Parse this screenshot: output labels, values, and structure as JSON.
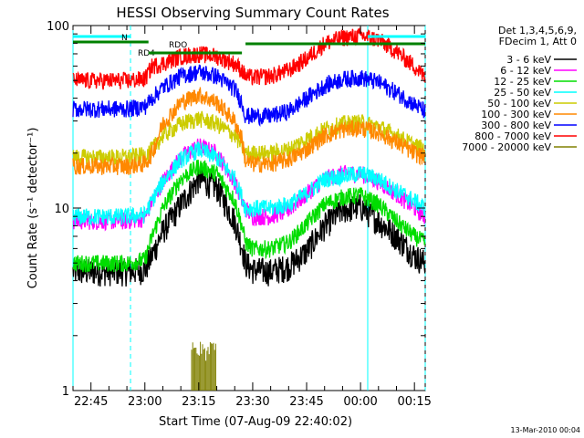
{
  "chart_data": {
    "type": "line",
    "title": "HESSI Observing Summary Count Rates",
    "xlabel": "Start Time (07-Aug-09 22:40:02)",
    "ylabel": "Count Rate (s⁻¹ detector⁻¹)",
    "yscale": "log",
    "ylim": [
      1,
      100
    ],
    "xlim": [
      "22:40",
      "00:18"
    ],
    "x_ticks": [
      "22:45",
      "23:00",
      "23:15",
      "23:30",
      "23:45",
      "00:00",
      "00:15"
    ],
    "y_ticks": [
      "1",
      "10",
      "100"
    ],
    "timestamp": "13-Mar-2010 00:04",
    "legend": {
      "header": [
        "Det 1,3,4,5,6,9,",
        "FDecim 1, Att 0"
      ],
      "placement": "right"
    },
    "annotations": {
      "night": {
        "label": "N",
        "segments": [
          [
            "22:40",
            "22:56"
          ],
          [
            "00:02",
            "00:18"
          ]
        ]
      },
      "rd4": {
        "label": "RD4",
        "segments": [
          [
            "22:40",
            "23:01"
          ]
        ]
      },
      "rdo": {
        "label": "RDO",
        "segments": [
          [
            "23:01",
            "23:27"
          ],
          [
            "23:28",
            "00:18"
          ]
        ]
      },
      "vertical_lines": {
        "solid": [
          "22:40",
          "00:02"
        ],
        "dashed": [
          "22:56",
          "00:18"
        ]
      }
    },
    "x_times": [
      "22:40",
      "22:45",
      "22:50",
      "22:55",
      "23:00",
      "23:02",
      "23:05",
      "23:10",
      "23:15",
      "23:20",
      "23:25",
      "23:27",
      "23:28",
      "23:30",
      "23:35",
      "23:40",
      "23:45",
      "23:50",
      "23:55",
      "00:00",
      "00:05",
      "00:10",
      "00:15",
      "00:18"
    ],
    "series": [
      {
        "name": "3 - 6 keV",
        "color": "#000000",
        "values": [
          4.5,
          4.5,
          4.5,
          4.5,
          4.6,
          5.5,
          7.5,
          10.5,
          14.5,
          13,
          8.5,
          6.2,
          5,
          4.6,
          4.5,
          4.8,
          5.8,
          8,
          9.8,
          10.2,
          8.5,
          7,
          5.5,
          5
        ]
      },
      {
        "name": "6 - 12 keV",
        "color": "#ff00ff",
        "values": [
          8.5,
          8.5,
          8.5,
          8.5,
          8.8,
          11,
          14,
          19,
          22,
          20,
          14,
          11,
          10,
          9,
          9,
          9.8,
          12,
          14.5,
          15.5,
          15.5,
          14,
          12,
          10,
          9
        ]
      },
      {
        "name": "12 - 25 keV",
        "color": "#00dd00",
        "values": [
          5,
          5,
          5,
          5,
          5.2,
          7,
          10,
          14.5,
          17,
          15.5,
          11,
          8,
          6.5,
          6,
          6,
          6.5,
          8.2,
          10.5,
          11.5,
          11.8,
          10.5,
          8.5,
          7,
          6.5
        ]
      },
      {
        "name": "25 - 50 keV",
        "color": "#00ffff",
        "values": [
          9,
          9,
          9,
          9,
          9.2,
          11,
          14,
          18.5,
          21,
          19,
          14.5,
          11.5,
          10,
          10,
          10,
          10.5,
          12,
          14.5,
          15,
          15.5,
          14.5,
          12.5,
          11,
          10
        ]
      },
      {
        "name": "50 - 100 keV",
        "color": "#cccc00",
        "values": [
          19,
          19,
          19,
          19,
          19.5,
          21,
          25,
          29,
          31,
          29,
          25,
          22,
          20,
          20,
          20,
          21,
          24,
          27,
          29,
          29.5,
          28,
          25,
          22,
          21
        ]
      },
      {
        "name": "100 - 300 keV",
        "color": "#ff8800",
        "values": [
          17,
          17,
          17,
          17,
          17.5,
          20,
          29,
          38,
          42,
          38,
          30,
          24,
          18,
          17.5,
          17.5,
          18.5,
          21,
          25,
          27,
          27.5,
          26,
          23,
          20,
          19
        ]
      },
      {
        "name": "300 - 800 keV",
        "color": "#0000ff",
        "values": [
          35,
          35,
          35,
          35,
          36,
          40,
          46,
          53,
          56,
          53,
          45,
          38,
          32,
          32,
          32,
          34,
          40,
          47,
          51,
          52,
          49,
          43,
          37,
          34
        ]
      },
      {
        "name": "800 - 7000 keV",
        "color": "#ff0000",
        "values": [
          50,
          50,
          50,
          50,
          51,
          60,
          62,
          68,
          70,
          68,
          62,
          57,
          53,
          52,
          53,
          57,
          66,
          80,
          86,
          88,
          84,
          72,
          60,
          52
        ]
      },
      {
        "name": "7000 - 20000 keV",
        "color": "#808000",
        "values": [
          null,
          null,
          null,
          null,
          null,
          null,
          null,
          null,
          1.85,
          1.85,
          null,
          null,
          null,
          null,
          null,
          null,
          null,
          null,
          null,
          null,
          null,
          null,
          null,
          null
        ],
        "note_range": [
          "23:13",
          "23:20"
        ]
      }
    ]
  }
}
